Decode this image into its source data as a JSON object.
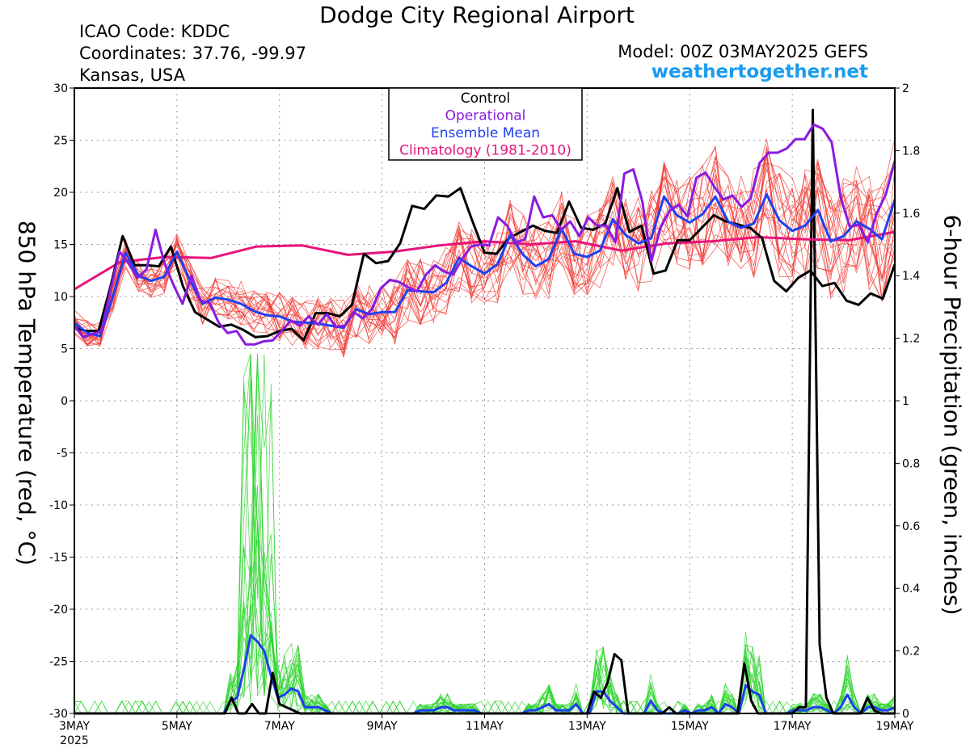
{
  "header": {
    "title": "Dodge City Regional Airport",
    "icao": "ICAO Code: KDDC",
    "coordinates": "Coordinates: 37.76, -99.97",
    "location": "Kansas, USA",
    "model": "Model: 00Z 03MAY2025 GEFS",
    "website": "weathertogether.net"
  },
  "chart_data": {
    "type": "line",
    "title": "Dodge City Regional Airport",
    "ylabel": "850 hPa Temperature (red, °C)",
    "y2label": "6-hour Precipitation (green, inches)",
    "xlim": [
      0,
      64
    ],
    "ylim": [
      -30,
      30
    ],
    "y2lim": [
      0,
      2
    ],
    "y_ticks": [
      30,
      25,
      20,
      15,
      10,
      5,
      0,
      -5,
      -10,
      -15,
      -20,
      -25,
      -30
    ],
    "y2_ticks": [
      2,
      1.8,
      1.6,
      1.4,
      1.2,
      1,
      0.8,
      0.6,
      0.4,
      0.2,
      0
    ],
    "x_tick_labels": [
      "3MAY",
      "5MAY",
      "7MAY",
      "9MAY",
      "11MAY",
      "13MAY",
      "15MAY",
      "17MAY",
      "19MAY"
    ],
    "x_tick_year": "2025",
    "grid": true,
    "legend": {
      "placement": "top-center",
      "entries": [
        {
          "label": "Control",
          "color": "#000000"
        },
        {
          "label": "Operational",
          "color": "#8a1be0"
        },
        {
          "label": "Ensemble Mean",
          "color": "#1f40f0"
        },
        {
          "label": "Climatology (1981-2010)",
          "color": "#e8137a"
        }
      ]
    },
    "colors": {
      "members_temp": "#f0302a",
      "members_precip": "#2fd42f"
    },
    "series": [
      {
        "name": "Control",
        "kind": "temperature",
        "color": "#000000",
        "values": [
          7,
          6.7,
          6.7,
          11,
          15.8,
          13,
          13,
          12.9,
          14.8,
          11,
          8.5,
          7.8,
          7.1,
          7.3,
          6.8,
          6.1,
          6.2,
          6.7,
          6.9,
          5.8,
          8.4,
          8.4,
          8.1,
          9.2,
          14.1,
          13.2,
          13.4,
          15.1,
          18.7,
          18.4,
          19.7,
          19.6,
          20.4,
          17.2,
          14.2,
          14.1,
          15.6,
          16.2,
          16.8,
          16.3,
          16.1,
          19.1,
          16.6,
          16.4,
          17,
          20.4,
          16.2,
          16.8,
          12.2,
          12.5,
          15.4,
          15.4,
          16.6,
          17.8,
          17.2,
          16.9,
          16.6,
          15.6,
          11.5,
          10.5,
          11.8,
          12.5,
          11,
          11.3,
          9.6,
          9.2,
          10.3,
          9.8,
          13.1
        ]
      },
      {
        "name": "Operational",
        "kind": "temperature",
        "color": "#8a1be0",
        "values": [
          7.2,
          6.1,
          6.4,
          6.7,
          10.6,
          14.3,
          13.2,
          11.8,
          12.6,
          16.4,
          13.2,
          11.1,
          9.3,
          12,
          9.6,
          9.4,
          7.5,
          6.5,
          6.7,
          5.4,
          5.4,
          5.7,
          5.8,
          6.7,
          7.7,
          7.2,
          8.1,
          7.3,
          8.3,
          7.1,
          7.2,
          8.5,
          7.9,
          8.8,
          10.8,
          11.6,
          11.4,
          10.9,
          10.5,
          12.1,
          13,
          12.4,
          12.1,
          13.6,
          14.8,
          15,
          14.9,
          17.6,
          16.8,
          15.2,
          15.5,
          19.6,
          17.6,
          17.8,
          16.4,
          17.2,
          15.8,
          17.6,
          16.8,
          16.8,
          15.2,
          21.8,
          22.2,
          19.1,
          13.4,
          16.6,
          18.2,
          18.8,
          17.7,
          21.4,
          21.9,
          20.5,
          19.3,
          19.7,
          18.6,
          19.4,
          22.8,
          23.8,
          23.8,
          24.2,
          25.1,
          25.1,
          26.5,
          26.1,
          24.8,
          19.5,
          16.7,
          16.9,
          15.2,
          18,
          19.8,
          23
        ]
      },
      {
        "name": "Ensemble Mean",
        "kind": "temperature",
        "color": "#1f40f0",
        "values": [
          7.5,
          6.5,
          6.2,
          10,
          14.2,
          12,
          11.5,
          11.9,
          14.3,
          11.6,
          9.3,
          9.9,
          9.7,
          9.3,
          8.6,
          8.2,
          8.1,
          7.6,
          7.5,
          7.4,
          7.2,
          7,
          8.8,
          8.3,
          8.5,
          8.5,
          10.6,
          10.5,
          10.4,
          11.3,
          13.7,
          12.9,
          12.2,
          13.1,
          15.9,
          14,
          12.9,
          13.6,
          16.5,
          14.1,
          13.8,
          14.4,
          17.4,
          15.9,
          15.1,
          15.6,
          19.6,
          17.8,
          17.1,
          17.9,
          19.6,
          17.2,
          16.6,
          17,
          19.8,
          17.3,
          16.3,
          16.8,
          18.3,
          15.3,
          15.8,
          17.2,
          16.5,
          15.5,
          19.3
        ]
      },
      {
        "name": "Climatology (1981-2010)",
        "kind": "temperature",
        "color": "#e8137a",
        "values": [
          10.7,
          13.3,
          13.8,
          13.7,
          14.8,
          14.9,
          14,
          14.3,
          14.9,
          15.3,
          15,
          15.3,
          14.4,
          15.1,
          15.3,
          15.7,
          15.5,
          15.4,
          16.2
        ]
      },
      {
        "name": "Control",
        "kind": "precipitation",
        "color": "#000000",
        "values": [
          0,
          0,
          0,
          0,
          0,
          0,
          0,
          0,
          0,
          0,
          0,
          0,
          0,
          0,
          0,
          0,
          0,
          0,
          0,
          0,
          0,
          0,
          0,
          0.05,
          0,
          0,
          0.03,
          0,
          0,
          0.13,
          0.03,
          0.02,
          0.01,
          0,
          0,
          0,
          0,
          0,
          0,
          0,
          0,
          0,
          0,
          0,
          0,
          0,
          0,
          0,
          0,
          0,
          0,
          0,
          0,
          0,
          0,
          0,
          0,
          0,
          0,
          0,
          0,
          0,
          0,
          0,
          0,
          0,
          0,
          0,
          0,
          0,
          0,
          0,
          0,
          0,
          0,
          0,
          0.07,
          0.05,
          0.1,
          0.19,
          0.17,
          0,
          0,
          0,
          0,
          0,
          0,
          0.02,
          0,
          0,
          0,
          0,
          0,
          0,
          0,
          0,
          0,
          0,
          0.16,
          0.04,
          0,
          0,
          0,
          0,
          0,
          0,
          0.02,
          0.02,
          1.93,
          0.22,
          0.05,
          0,
          0,
          0,
          0,
          0,
          0.05,
          0.01,
          0,
          0,
          0
        ]
      },
      {
        "name": "Ensemble Mean",
        "kind": "precipitation",
        "color": "#1f40f0",
        "values": [
          0,
          0,
          0,
          0,
          0,
          0,
          0,
          0,
          0,
          0,
          0,
          0,
          0,
          0,
          0,
          0,
          0,
          0,
          0,
          0,
          0,
          0,
          0,
          0.04,
          0.05,
          0.14,
          0.25,
          0.23,
          0.2,
          0.12,
          0.05,
          0.06,
          0.08,
          0.07,
          0.02,
          0.02,
          0.02,
          0.01,
          0,
          0,
          0,
          0,
          0,
          0,
          0,
          0,
          0,
          0,
          0,
          0,
          0,
          0.01,
          0.01,
          0.01,
          0.02,
          0.02,
          0.01,
          0.01,
          0.01,
          0.01,
          0,
          0,
          0,
          0,
          0,
          0,
          0,
          0.01,
          0.01,
          0.02,
          0.03,
          0.01,
          0.01,
          0.01,
          0.03,
          0,
          0,
          0.07,
          0.07,
          0.04,
          0.02,
          0,
          0,
          0,
          0,
          0.04,
          0.01,
          0,
          0,
          0,
          0.01,
          0,
          0.01,
          0.01,
          0.02,
          0,
          0.03,
          0.02,
          0,
          0.09,
          0.07,
          0.06,
          0,
          0,
          0,
          0,
          0.01,
          0.01,
          0.01,
          0.02,
          0.02,
          0.01,
          0,
          0.02,
          0.06,
          0.02,
          0,
          0.02,
          0.02,
          0.01,
          0.01,
          0.02
        ]
      }
    ]
  }
}
